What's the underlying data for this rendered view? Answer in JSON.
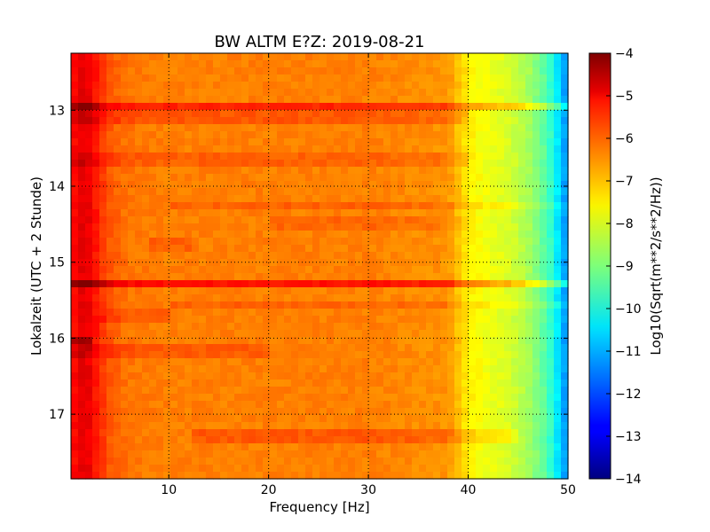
{
  "chart_data": {
    "type": "heatmap",
    "title": "BW ALTM E?Z: 2019-08-21",
    "xlabel": "Frequency [Hz]",
    "ylabel": "Lokalzeit (UTC + 2 Stunde)",
    "xlim": [
      0.2,
      50
    ],
    "ylim": [
      12.25,
      17.85
    ],
    "y_inverted": true,
    "x_ticks": [
      10,
      20,
      30,
      40,
      50
    ],
    "x_tick_labels": [
      "10",
      "20",
      "30",
      "40",
      "50"
    ],
    "y_ticks": [
      13,
      14,
      15,
      16,
      17
    ],
    "y_tick_labels": [
      "13",
      "14",
      "15",
      "16",
      "17"
    ],
    "grid": true,
    "colormap": "jet",
    "colorbar": {
      "label": "Log10(Sqrt(m**2/s**2/Hz))",
      "range": [
        -14,
        -4
      ],
      "ticks": [
        -4,
        -5,
        -6,
        -7,
        -8,
        -9,
        -10,
        -11,
        -12,
        -13,
        -14
      ],
      "tick_labels": [
        "−4",
        "−5",
        "−6",
        "−7",
        "−8",
        "−9",
        "−10",
        "−11",
        "−12",
        "−13",
        "−14"
      ]
    },
    "spectrum_profile": {
      "frequency_hz": [
        0.2,
        1,
        2,
        3,
        4,
        6,
        10,
        20,
        30,
        38,
        40,
        42,
        44,
        46,
        48,
        49,
        50
      ],
      "log10_amplitude": [
        -5.5,
        -5.0,
        -5.1,
        -5.6,
        -6.1,
        -6.4,
        -6.5,
        -6.5,
        -6.5,
        -6.7,
        -7.6,
        -7.9,
        -8.1,
        -8.6,
        -9.5,
        -10.5,
        -11.5
      ]
    },
    "bands": [
      {
        "time": 12.95,
        "f_start": 0.2,
        "f_end": 50,
        "delta": 0.9
      },
      {
        "time": 13.1,
        "f_start": 0.2,
        "f_end": 40,
        "delta": 0.4
      },
      {
        "time": 13.65,
        "f_start": 0.2,
        "f_end": 40,
        "delta": 0.3
      },
      {
        "time": 14.25,
        "f_start": 10,
        "f_end": 50,
        "delta": 0.3
      },
      {
        "time": 14.5,
        "f_start": 20,
        "f_end": 40,
        "delta": 0.25
      },
      {
        "time": 14.75,
        "f_start": 8,
        "f_end": 12,
        "delta": 0.3
      },
      {
        "time": 15.28,
        "f_start": 0.2,
        "f_end": 50,
        "delta": 1.1
      },
      {
        "time": 15.55,
        "f_start": 10,
        "f_end": 50,
        "delta": 0.3
      },
      {
        "time": 15.7,
        "f_start": 3,
        "f_end": 10,
        "delta": 0.3
      },
      {
        "time": 16.02,
        "f_start": 0.2,
        "f_end": 2,
        "delta": 0.8
      },
      {
        "time": 16.18,
        "f_start": 0.2,
        "f_end": 20,
        "delta": 0.35
      },
      {
        "time": 17.25,
        "f_start": 12,
        "f_end": 45,
        "delta": 0.4
      },
      {
        "time": 17.35,
        "f_start": 12,
        "f_end": 45,
        "delta": 0.4
      }
    ]
  }
}
